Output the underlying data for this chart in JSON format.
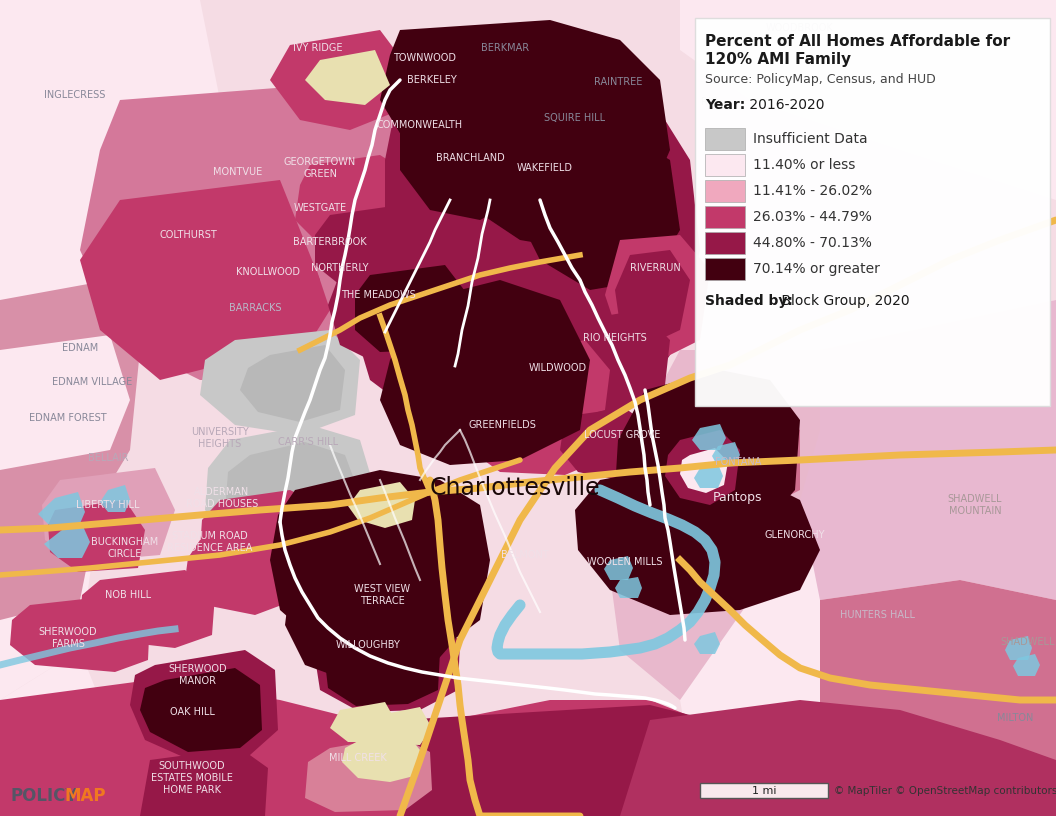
{
  "title_line1": "Percent of All Homes Affordable for",
  "title_line2": "120% AMI Family",
  "source": "Source: PolicyMap, Census, and HUD",
  "year_label": "Year:",
  "year_value": "2016-2020",
  "shaded_by_label": "Shaded by:",
  "shaded_by_value": "Block Group, 2020",
  "legend_items": [
    {
      "label": "Insufficient Data",
      "color": "#c8c8c8"
    },
    {
      "label": "11.40% or less",
      "color": "#fce8f0"
    },
    {
      "label": "11.41% - 26.02%",
      "color": "#f0a8be"
    },
    {
      "label": "26.03% - 44.79%",
      "color": "#c2396a"
    },
    {
      "label": "44.80% - 70.13%",
      "color": "#961848"
    },
    {
      "label": "70.14% or greater",
      "color": "#420010"
    }
  ],
  "city_label": "Charlottesville",
  "scale_bar_label": "1 mi",
  "copyright_text": "© MapTiler © OpenStreetMap contributors",
  "fig_width": 10.56,
  "fig_height": 8.16,
  "dpi": 100,
  "bg_outer": "#f5dce4",
  "bg_light_pink": "#ebb8c8",
  "road_color": "#f0b84a",
  "white_border": "#ffffff",
  "river_color": "#7ec8e0"
}
